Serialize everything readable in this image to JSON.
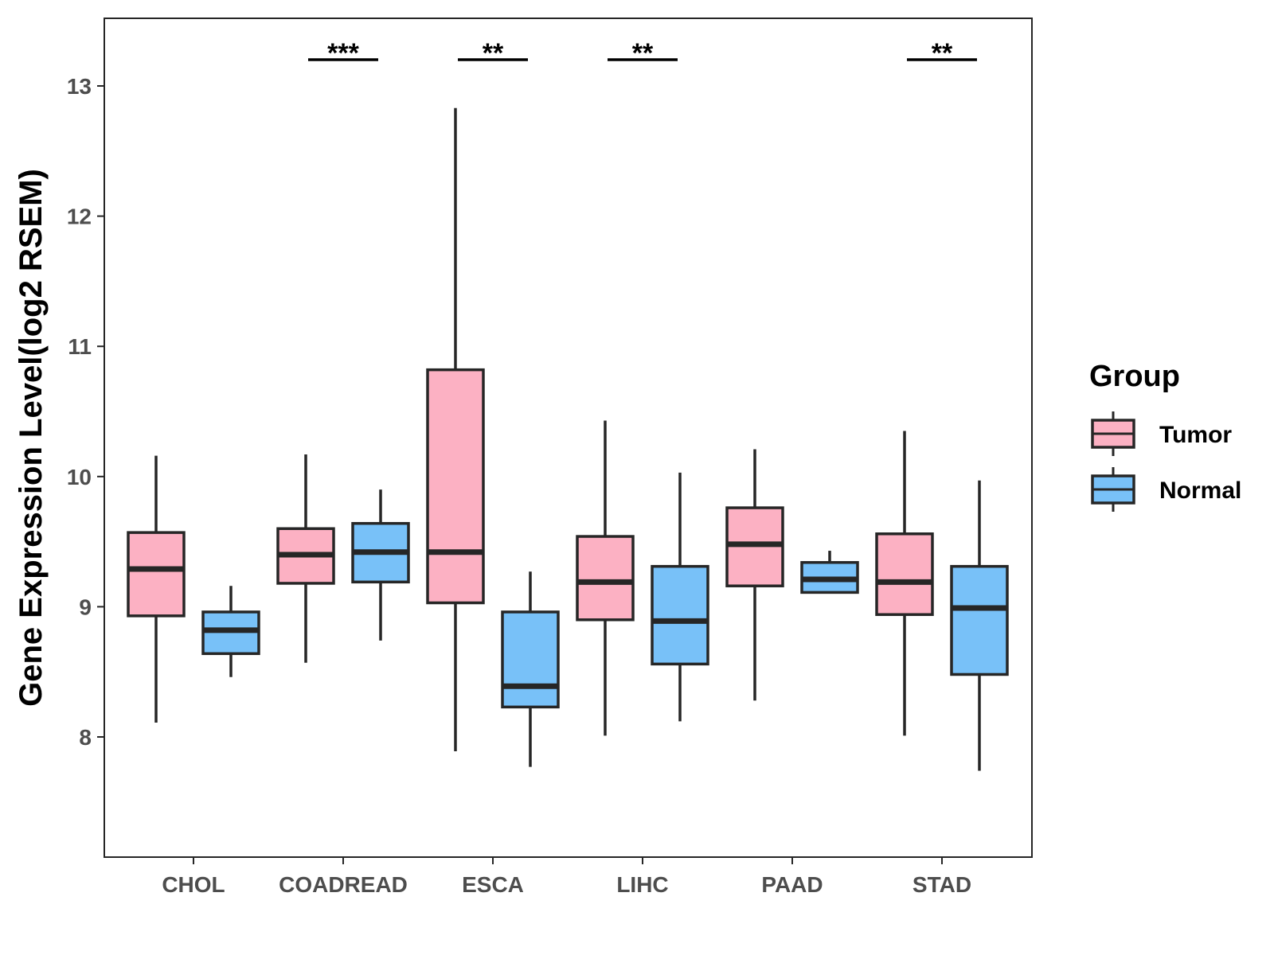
{
  "chart_data": {
    "type": "boxplot",
    "title": "",
    "xlabel": "",
    "ylabel": "Gene Expression Level(log2 RSEM)",
    "ylim": [
      7.1,
      13.5
    ],
    "yticks": [
      8,
      9,
      10,
      11,
      12,
      13
    ],
    "grid": false,
    "legend_position": "right",
    "legend_title": "Group",
    "categories": [
      "CHOL",
      "COADREAD",
      "ESCA",
      "LIHC",
      "PAAD",
      "STAD"
    ],
    "series": [
      {
        "name": "Tumor",
        "color": "#FCB1C3",
        "boxes": [
          {
            "min": 8.11,
            "q1": 8.93,
            "median": 9.29,
            "q3": 9.57,
            "max": 10.16
          },
          {
            "min": 8.57,
            "q1": 9.18,
            "median": 9.4,
            "q3": 9.6,
            "max": 10.17
          },
          {
            "min": 7.89,
            "q1": 9.03,
            "median": 9.42,
            "q3": 10.82,
            "max": 12.83
          },
          {
            "min": 8.01,
            "q1": 8.9,
            "median": 9.19,
            "q3": 9.54,
            "max": 10.43
          },
          {
            "min": 8.28,
            "q1": 9.16,
            "median": 9.48,
            "q3": 9.76,
            "max": 10.21
          },
          {
            "min": 8.01,
            "q1": 8.94,
            "median": 9.19,
            "q3": 9.56,
            "max": 10.35
          }
        ]
      },
      {
        "name": "Normal",
        "color": "#78C1F8",
        "boxes": [
          {
            "min": 8.46,
            "q1": 8.64,
            "median": 8.82,
            "q3": 8.96,
            "max": 9.16
          },
          {
            "min": 8.74,
            "q1": 9.19,
            "median": 9.42,
            "q3": 9.64,
            "max": 9.9
          },
          {
            "min": 7.77,
            "q1": 8.23,
            "median": 8.39,
            "q3": 8.96,
            "max": 9.27
          },
          {
            "min": 8.12,
            "q1": 8.56,
            "median": 8.89,
            "q3": 9.31,
            "max": 10.03
          },
          {
            "min": 9.11,
            "q1": 9.11,
            "median": 9.21,
            "q3": 9.34,
            "max": 9.43
          },
          {
            "min": 7.74,
            "q1": 8.48,
            "median": 8.99,
            "q3": 9.31,
            "max": 9.97
          }
        ]
      }
    ],
    "significance": [
      {
        "category": "COADREAD",
        "label": "***"
      },
      {
        "category": "ESCA",
        "label": "**"
      },
      {
        "category": "LIHC",
        "label": "**"
      },
      {
        "category": "STAD",
        "label": "**"
      }
    ]
  }
}
